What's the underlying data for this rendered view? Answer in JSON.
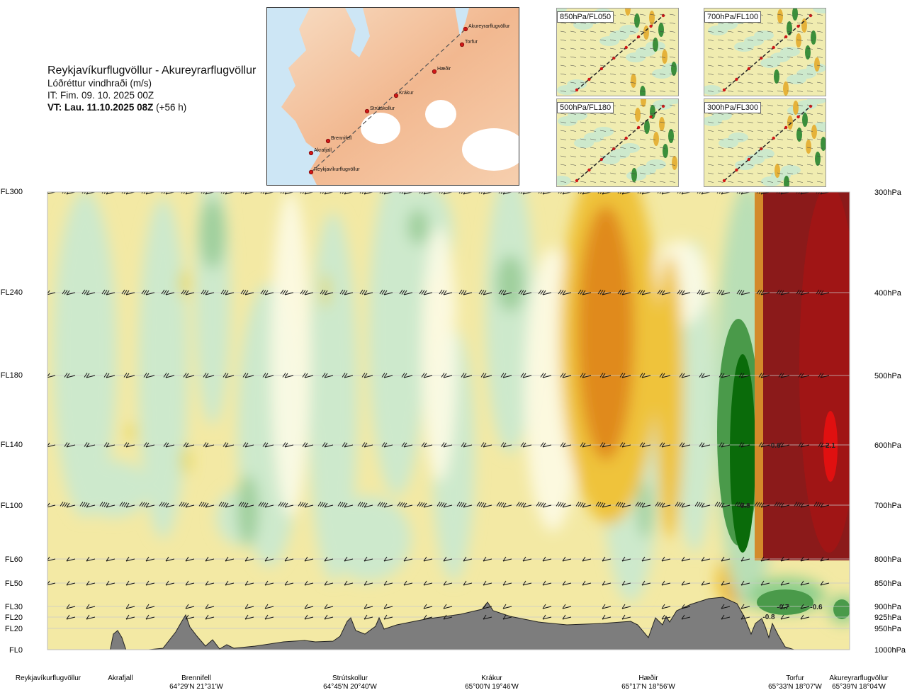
{
  "header": {
    "title": "Reykjavíkurflugvöllur - Akureyrarflugvöllur",
    "subtitle": "Lóðréttur vindhraði (m/s)",
    "issue_time": "IT: Fim. 09. 10. 2025 00Z",
    "valid_time_bold": "VT: Lau. 11.10.2025 08Z",
    "valid_time_offset": "(+56 h)"
  },
  "route_map": {
    "waypoints": [
      "Akureyrarflugvöllur",
      "Torfur",
      "Hæðir",
      "Krákur",
      "Strútskollur",
      "Brennifell",
      "Akrafjall",
      "Reykjavíkurflugvöllur"
    ]
  },
  "level_maps": [
    {
      "label": "850hPa/FL050"
    },
    {
      "label": "700hPa/FL100"
    },
    {
      "label": "500hPa/FL180"
    },
    {
      "label": "300hPa/FL300"
    }
  ],
  "colors": {
    "strong_up": "#8b1a1a",
    "up": "#e08a1e",
    "weak_up": "#f3e79c",
    "neutral": "#fdfbe6",
    "weak_down": "#cde9cc",
    "down": "#4a9a4a",
    "strong_down": "#0a6b0a",
    "terrain": "#7d7d7d"
  },
  "chart_data": {
    "type": "heatmap",
    "title": "Reykjavíkurflugvöllur - Akureyrarflugvöllur",
    "variable": "Lóðréttur vindhraði (m/s)",
    "y_left_ticks": [
      "FL300",
      "FL240",
      "FL180",
      "FL140",
      "FL100",
      "FL60",
      "FL50",
      "FL30",
      "FL20",
      "FL20",
      "FL0"
    ],
    "y_right_ticks": [
      "300hPa",
      "400hPa",
      "500hPa",
      "600hPa",
      "700hPa",
      "800hPa",
      "850hPa",
      "900hPa",
      "925hPa",
      "950hPa",
      "1000hPa"
    ],
    "pressure_levels_hpa": [
      300,
      400,
      500,
      600,
      700,
      800,
      850,
      900,
      925,
      950,
      1000
    ],
    "x_stations": [
      {
        "name": "Reykjavíkurflugvöllur",
        "coord": ""
      },
      {
        "name": "Akrafjall",
        "coord": ""
      },
      {
        "name": "Brennifell",
        "coord": "64°29'N 21°31'W"
      },
      {
        "name": "Strútskollur",
        "coord": "64°45'N 20°40'W"
      },
      {
        "name": "Krákur",
        "coord": "65°00'N 19°46'W"
      },
      {
        "name": "Hæðir",
        "coord": "65°17'N 18°56'W"
      },
      {
        "name": "Torfur",
        "coord": "65°33'N 18°07'W"
      },
      {
        "name": "Akureyrarflugvöllur",
        "coord": "65°39'N 18°04'W"
      }
    ],
    "annotations": [
      "-0.8",
      "-0.7",
      "-0.6",
      "-0.6",
      "-0.8",
      "2.1"
    ],
    "features": [
      {
        "kind": "max",
        "value": 2.1,
        "pressure_hpa": 600,
        "near": "Akureyrarflugvöllur"
      },
      {
        "kind": "min",
        "value": -0.8,
        "pressure_hpa": 700,
        "near": "Torfur"
      }
    ]
  }
}
